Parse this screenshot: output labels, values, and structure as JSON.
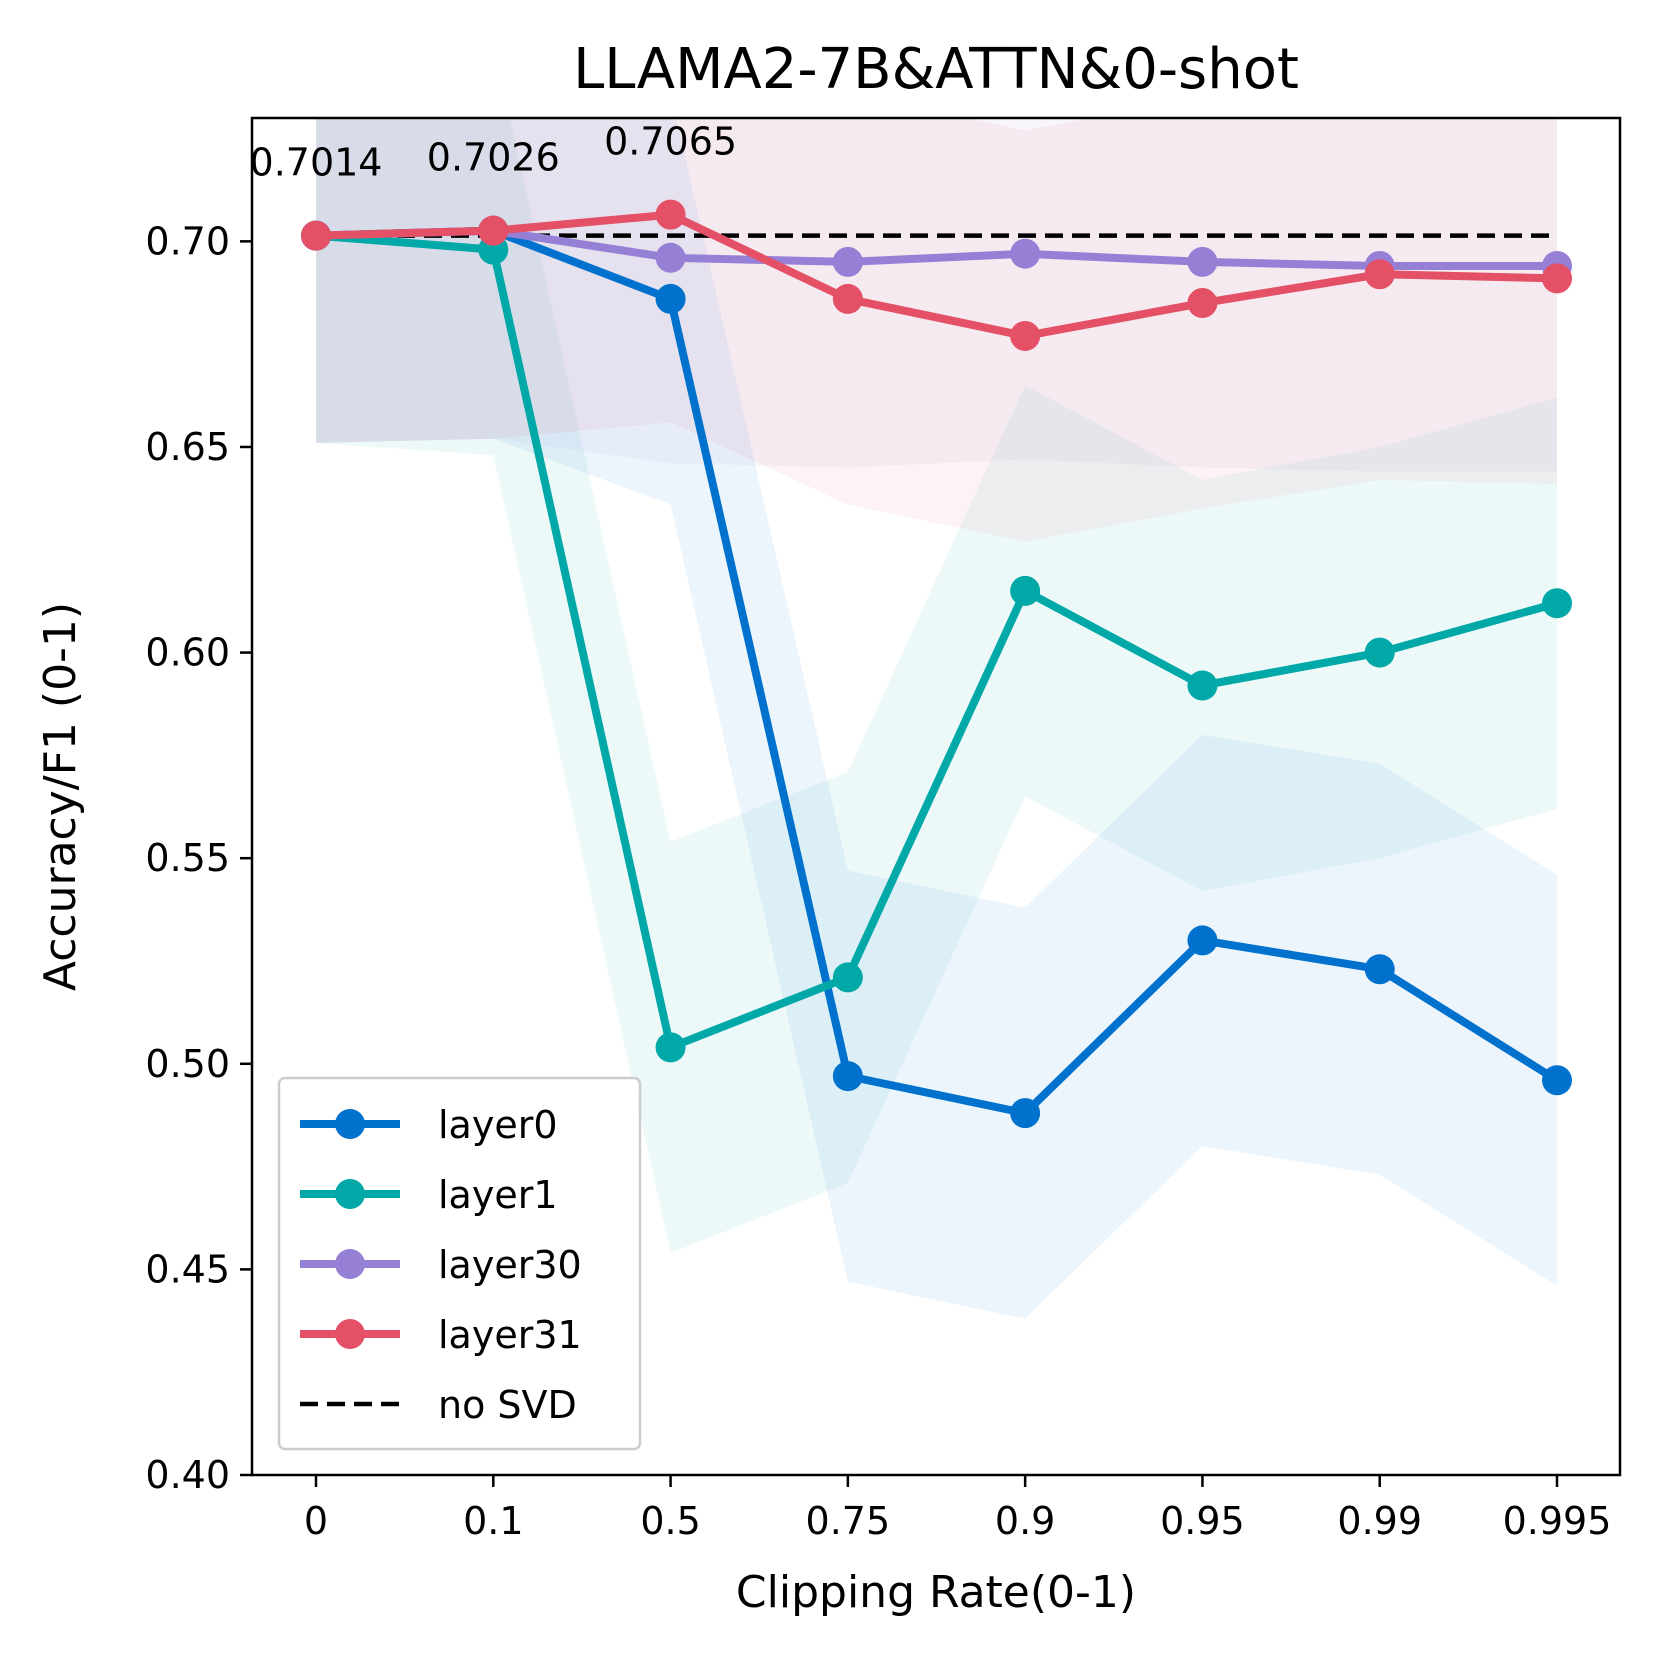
{
  "chart_data": {
    "type": "line",
    "title": "LLAMA2-7B&ATTN&0-shot",
    "xlabel": "Clipping Rate(0-1)",
    "ylabel": "Accuracy/F1 (0-1)",
    "x": [
      "0",
      "0.1",
      "0.5",
      "0.75",
      "0.9",
      "0.95",
      "0.99",
      "0.995"
    ],
    "ylim": [
      0.4,
      0.73
    ],
    "yticks": [
      "0.40",
      "0.45",
      "0.50",
      "0.55",
      "0.60",
      "0.65",
      "0.70"
    ],
    "ytick_values": [
      0.4,
      0.45,
      0.5,
      0.55,
      0.6,
      0.65,
      0.7
    ],
    "grid": false,
    "legend_position": "lower-left",
    "series": [
      {
        "name": "layer0",
        "color": "#0072CE",
        "values": [
          0.7014,
          0.7026,
          0.686,
          0.497,
          0.488,
          0.53,
          0.523,
          0.496
        ],
        "band_lower": [
          0.651,
          0.652,
          0.636,
          0.447,
          0.438,
          0.48,
          0.473,
          0.446
        ],
        "band_upper": [
          0.751,
          0.752,
          0.736,
          0.547,
          0.538,
          0.58,
          0.573,
          0.546
        ]
      },
      {
        "name": "layer1",
        "color": "#00A8A8",
        "values": [
          0.7014,
          0.698,
          0.504,
          0.521,
          0.615,
          0.592,
          0.6,
          0.612
        ],
        "band_lower": [
          0.651,
          0.648,
          0.454,
          0.471,
          0.565,
          0.542,
          0.55,
          0.562
        ],
        "band_upper": [
          0.751,
          0.748,
          0.554,
          0.571,
          0.665,
          0.642,
          0.65,
          0.662
        ]
      },
      {
        "name": "layer30",
        "color": "#9580D6",
        "values": [
          0.7014,
          0.7026,
          0.696,
          0.695,
          0.697,
          0.695,
          0.694,
          0.694
        ],
        "band_lower": [
          0.651,
          0.652,
          0.646,
          0.645,
          0.647,
          0.645,
          0.644,
          0.644
        ],
        "band_upper": [
          0.751,
          0.752,
          0.746,
          0.745,
          0.747,
          0.745,
          0.744,
          0.744
        ]
      },
      {
        "name": "layer31",
        "color": "#E45065",
        "values": [
          0.7014,
          0.7026,
          0.7065,
          0.686,
          0.677,
          0.685,
          0.692,
          0.691
        ],
        "band_lower": [
          0.651,
          0.652,
          0.656,
          0.636,
          0.627,
          0.635,
          0.642,
          0.641
        ],
        "band_upper": [
          0.751,
          0.752,
          0.756,
          0.736,
          0.727,
          0.735,
          0.742,
          0.741
        ]
      }
    ],
    "baseline": {
      "name": "no SVD",
      "value": 0.7014,
      "color": "#000000"
    },
    "annotations": [
      {
        "text": "0.7014",
        "x_index": 0,
        "y": 0.7014
      },
      {
        "text": "0.7026",
        "x_index": 1,
        "y": 0.7026
      },
      {
        "text": "0.7065",
        "x_index": 2,
        "y": 0.7065
      }
    ]
  }
}
